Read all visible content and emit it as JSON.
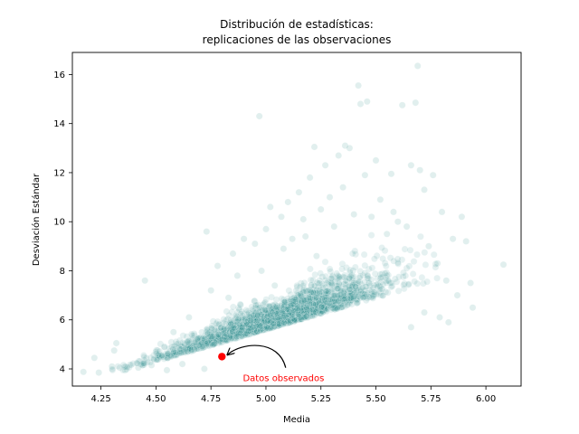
{
  "chart_data": {
    "type": "scatter",
    "title_line1": "Distribución de estadísticas:",
    "title_line2": "replicaciones de las observaciones",
    "xlabel": "Media",
    "ylabel": "Desviación Estándar",
    "xlim": [
      4.12,
      6.16
    ],
    "ylim": [
      3.3,
      16.9
    ],
    "xticks": [
      "4.25",
      "4.50",
      "4.75",
      "5.00",
      "5.25",
      "5.50",
      "5.75",
      "6.00"
    ],
    "xtick_values": [
      4.25,
      4.5,
      4.75,
      5.0,
      5.25,
      5.5,
      5.75,
      6.0
    ],
    "yticks": [
      "4",
      "6",
      "8",
      "10",
      "12",
      "14",
      "16"
    ],
    "ytick_values": [
      4,
      6,
      8,
      10,
      12,
      14,
      16
    ],
    "grid": false,
    "colors": {
      "replicates": "#2a8c8a",
      "observed": "#ff0000",
      "annotation_text": "#ff0000",
      "arrow": "#000000"
    },
    "observed_point": {
      "x": 4.8,
      "y": 4.5
    },
    "annotation": {
      "text": "Datos observados",
      "text_x": 5.08,
      "text_y": 3.65
    },
    "replicate_points": [
      [
        4.17,
        3.88
      ],
      [
        4.22,
        4.45
      ],
      [
        4.24,
        3.85
      ],
      [
        4.3,
        4.1
      ],
      [
        4.31,
        4.75
      ],
      [
        4.32,
        5.05
      ],
      [
        4.36,
        3.95
      ],
      [
        4.42,
        4.05
      ],
      [
        4.45,
        7.6
      ],
      [
        4.48,
        4.15
      ],
      [
        4.52,
        4.5
      ],
      [
        4.55,
        3.95
      ],
      [
        4.58,
        5.5
      ],
      [
        4.62,
        4.2
      ],
      [
        4.65,
        6.1
      ],
      [
        4.69,
        5.2
      ],
      [
        4.72,
        4.0
      ],
      [
        4.73,
        9.6
      ],
      [
        4.75,
        7.2
      ],
      [
        4.78,
        8.2
      ],
      [
        4.83,
        6.9
      ],
      [
        4.85,
        8.7
      ],
      [
        4.87,
        7.8
      ],
      [
        4.9,
        9.3
      ],
      [
        4.92,
        5.9
      ],
      [
        4.95,
        9.1
      ],
      [
        4.97,
        14.3
      ],
      [
        4.98,
        8.0
      ],
      [
        5.0,
        9.7
      ],
      [
        5.02,
        10.6
      ],
      [
        5.04,
        7.4
      ],
      [
        5.07,
        10.2
      ],
      [
        5.08,
        8.9
      ],
      [
        5.1,
        10.8
      ],
      [
        5.12,
        9.3
      ],
      [
        5.15,
        11.2
      ],
      [
        5.17,
        10.1
      ],
      [
        5.18,
        9.4
      ],
      [
        5.2,
        11.8
      ],
      [
        5.22,
        13.05
      ],
      [
        5.23,
        8.6
      ],
      [
        5.25,
        10.5
      ],
      [
        5.27,
        12.3
      ],
      [
        5.29,
        11.0
      ],
      [
        5.31,
        9.8
      ],
      [
        5.33,
        12.7
      ],
      [
        5.35,
        11.4
      ],
      [
        5.36,
        13.1
      ],
      [
        5.38,
        13.0
      ],
      [
        5.4,
        10.3
      ],
      [
        5.42,
        15.55
      ],
      [
        5.43,
        14.8
      ],
      [
        5.45,
        11.9
      ],
      [
        5.46,
        14.9
      ],
      [
        5.48,
        10.2
      ],
      [
        5.5,
        12.5
      ],
      [
        5.52,
        10.9
      ],
      [
        5.55,
        9.5
      ],
      [
        5.57,
        11.95
      ],
      [
        5.58,
        10.4
      ],
      [
        5.6,
        10.0
      ],
      [
        5.62,
        14.75
      ],
      [
        5.64,
        9.8
      ],
      [
        5.66,
        12.3
      ],
      [
        5.68,
        14.85
      ],
      [
        5.69,
        16.35
      ],
      [
        5.7,
        12.1
      ],
      [
        5.72,
        11.3
      ],
      [
        5.74,
        9.0
      ],
      [
        5.76,
        11.9
      ],
      [
        5.78,
        8.3
      ],
      [
        5.8,
        10.4
      ],
      [
        5.82,
        7.6
      ],
      [
        5.85,
        9.3
      ],
      [
        5.87,
        7.0
      ],
      [
        5.89,
        10.2
      ],
      [
        5.91,
        9.2
      ],
      [
        5.93,
        7.5
      ],
      [
        6.08,
        8.25
      ],
      [
        5.94,
        6.5
      ],
      [
        5.83,
        5.9
      ],
      [
        5.79,
        6.1
      ],
      [
        5.72,
        6.3
      ],
      [
        5.66,
        5.7
      ]
    ]
  }
}
